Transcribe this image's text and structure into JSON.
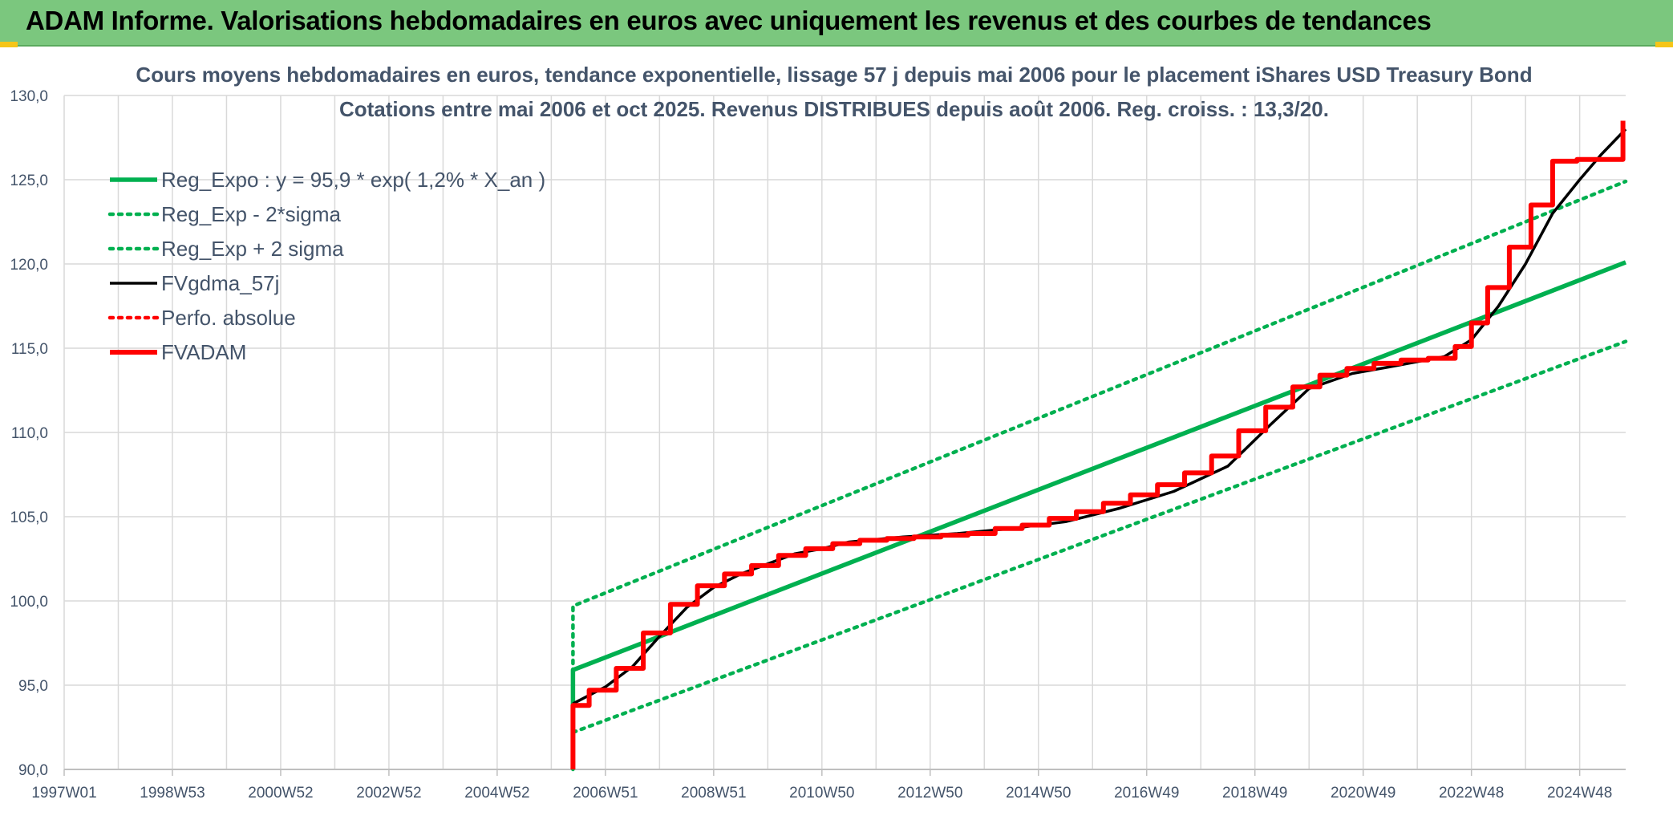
{
  "header": {
    "title": "ADAM Informe. Valorisations hebdomadaires en euros avec uniquement les revenus et des courbes de tendances"
  },
  "colors": {
    "header_bg": "#7bc77e",
    "accent": "#f5c518",
    "reg_green": "#00b050",
    "fv_black": "#000000",
    "adam_red": "#ff0000",
    "grid": "#d9d9d9",
    "text": "#44546a"
  },
  "chart_data": {
    "type": "line",
    "title": "Cours moyens hebdomadaires en euros, tendance exponentielle, lissage 57 j depuis mai 2006 pour le placement iShares USD Treasury Bond",
    "subtitle": "Cotations entre mai 2006 et oct 2025. Revenus DISTRIBUES depuis août 2006. Reg. croiss. : 13,3/20.",
    "xlabel": "",
    "ylabel": "",
    "x_range": [
      1997.0,
      2025.85
    ],
    "ylim": [
      90,
      130
    ],
    "y_ticks": [
      90,
      95,
      100,
      105,
      110,
      115,
      120,
      125,
      130
    ],
    "y_tick_labels": [
      "90,0",
      "95,0",
      "100,0",
      "105,0",
      "110,0",
      "115,0",
      "120,0",
      "125,0",
      "130,0"
    ],
    "x_ticks": [
      1997.0,
      1999.0,
      2001.0,
      2003.0,
      2005.0,
      2007.0,
      2009.0,
      2011.0,
      2013.0,
      2015.0,
      2017.0,
      2019.0,
      2021.0,
      2023.0,
      2025.0
    ],
    "x_tick_labels": [
      "1997W01",
      "1998W53",
      "2000W52",
      "2002W52",
      "2004W52",
      "2006W51",
      "2008W51",
      "2010W50",
      "2012W50",
      "2014W50",
      "2016W49",
      "2018W49",
      "2020W49",
      "2022W48",
      "2024W48"
    ],
    "grid": true,
    "legend_position": "top-left",
    "series": [
      {
        "name": "Reg_Expo : y = 95,9 * exp( 1,2% *  X_an )",
        "style": "solid",
        "color": "#00b050",
        "points": [
          [
            2006.4,
            90.0
          ],
          [
            2006.4,
            95.9
          ],
          [
            2025.85,
            120.1
          ]
        ]
      },
      {
        "name": "Reg_Exp - 2*sigma",
        "style": "dotted",
        "color": "#00b050",
        "points": [
          [
            2006.4,
            92.2
          ],
          [
            2025.85,
            115.4
          ]
        ]
      },
      {
        "name": "Reg_Exp + 2 sigma",
        "style": "dotted",
        "color": "#00b050",
        "points": [
          [
            2006.4,
            90.0
          ],
          [
            2006.4,
            99.7
          ],
          [
            2025.85,
            124.9
          ]
        ]
      },
      {
        "name": "FVgdma_57j",
        "style": "solid",
        "color": "#000000",
        "points": [
          [
            2006.4,
            93.9
          ],
          [
            2007.0,
            94.9
          ],
          [
            2007.5,
            96.1
          ],
          [
            2008.0,
            97.9
          ],
          [
            2008.5,
            99.6
          ],
          [
            2009.0,
            100.8
          ],
          [
            2009.5,
            101.6
          ],
          [
            2010.0,
            102.2
          ],
          [
            2010.5,
            102.8
          ],
          [
            2011.0,
            103.1
          ],
          [
            2011.5,
            103.5
          ],
          [
            2012.5,
            103.8
          ],
          [
            2013.5,
            104.0
          ],
          [
            2014.5,
            104.3
          ],
          [
            2015.5,
            104.7
          ],
          [
            2016.5,
            105.5
          ],
          [
            2017.5,
            106.5
          ],
          [
            2018.5,
            108.0
          ],
          [
            2019.3,
            110.5
          ],
          [
            2020.0,
            112.6
          ],
          [
            2020.8,
            113.5
          ],
          [
            2021.5,
            113.9
          ],
          [
            2022.5,
            114.5
          ],
          [
            2023.0,
            115.5
          ],
          [
            2023.5,
            117.5
          ],
          [
            2024.0,
            120.0
          ],
          [
            2024.5,
            123.0
          ],
          [
            2025.0,
            125.0
          ],
          [
            2025.4,
            126.5
          ],
          [
            2025.85,
            128.0
          ]
        ]
      },
      {
        "name": "Perfo. absolue",
        "style": "dotted",
        "color": "#ff0000",
        "points": []
      },
      {
        "name": "FVADAM",
        "style": "solid",
        "color": "#ff0000",
        "step": true,
        "points": [
          [
            2006.4,
            90.0
          ],
          [
            2006.4,
            93.8
          ],
          [
            2006.7,
            93.8
          ],
          [
            2006.7,
            94.7
          ],
          [
            2007.2,
            94.7
          ],
          [
            2007.2,
            96.0
          ],
          [
            2007.7,
            96.0
          ],
          [
            2007.7,
            98.1
          ],
          [
            2008.2,
            98.1
          ],
          [
            2008.2,
            99.8
          ],
          [
            2008.7,
            99.8
          ],
          [
            2008.7,
            100.9
          ],
          [
            2009.2,
            100.9
          ],
          [
            2009.2,
            101.6
          ],
          [
            2009.7,
            101.6
          ],
          [
            2009.7,
            102.1
          ],
          [
            2010.2,
            102.1
          ],
          [
            2010.2,
            102.7
          ],
          [
            2010.7,
            102.7
          ],
          [
            2010.7,
            103.1
          ],
          [
            2011.2,
            103.1
          ],
          [
            2011.2,
            103.4
          ],
          [
            2011.7,
            103.4
          ],
          [
            2011.7,
            103.6
          ],
          [
            2012.2,
            103.6
          ],
          [
            2012.2,
            103.7
          ],
          [
            2012.7,
            103.7
          ],
          [
            2012.7,
            103.8
          ],
          [
            2013.2,
            103.8
          ],
          [
            2013.2,
            103.9
          ],
          [
            2013.7,
            103.9
          ],
          [
            2013.7,
            104.0
          ],
          [
            2014.2,
            104.0
          ],
          [
            2014.2,
            104.3
          ],
          [
            2014.7,
            104.3
          ],
          [
            2014.7,
            104.5
          ],
          [
            2015.2,
            104.5
          ],
          [
            2015.2,
            104.9
          ],
          [
            2015.7,
            104.9
          ],
          [
            2015.7,
            105.3
          ],
          [
            2016.2,
            105.3
          ],
          [
            2016.2,
            105.8
          ],
          [
            2016.7,
            105.8
          ],
          [
            2016.7,
            106.3
          ],
          [
            2017.2,
            106.3
          ],
          [
            2017.2,
            106.9
          ],
          [
            2017.7,
            106.9
          ],
          [
            2017.7,
            107.6
          ],
          [
            2018.2,
            107.6
          ],
          [
            2018.2,
            108.6
          ],
          [
            2018.7,
            108.6
          ],
          [
            2018.7,
            110.1
          ],
          [
            2019.2,
            110.1
          ],
          [
            2019.2,
            111.5
          ],
          [
            2019.7,
            111.5
          ],
          [
            2019.7,
            112.7
          ],
          [
            2020.2,
            112.7
          ],
          [
            2020.2,
            113.4
          ],
          [
            2020.7,
            113.4
          ],
          [
            2020.7,
            113.8
          ],
          [
            2021.2,
            113.8
          ],
          [
            2021.2,
            114.1
          ],
          [
            2021.7,
            114.1
          ],
          [
            2021.7,
            114.3
          ],
          [
            2022.2,
            114.3
          ],
          [
            2022.2,
            114.4
          ],
          [
            2022.7,
            114.4
          ],
          [
            2022.7,
            115.1
          ],
          [
            2023.0,
            115.1
          ],
          [
            2023.0,
            116.5
          ],
          [
            2023.3,
            116.5
          ],
          [
            2023.3,
            118.6
          ],
          [
            2023.7,
            118.6
          ],
          [
            2023.7,
            121.0
          ],
          [
            2024.1,
            121.0
          ],
          [
            2024.1,
            123.5
          ],
          [
            2024.5,
            123.5
          ],
          [
            2024.5,
            126.1
          ],
          [
            2024.95,
            126.1
          ],
          [
            2024.95,
            126.2
          ],
          [
            2025.8,
            126.2
          ],
          [
            2025.8,
            128.5
          ]
        ]
      }
    ]
  }
}
